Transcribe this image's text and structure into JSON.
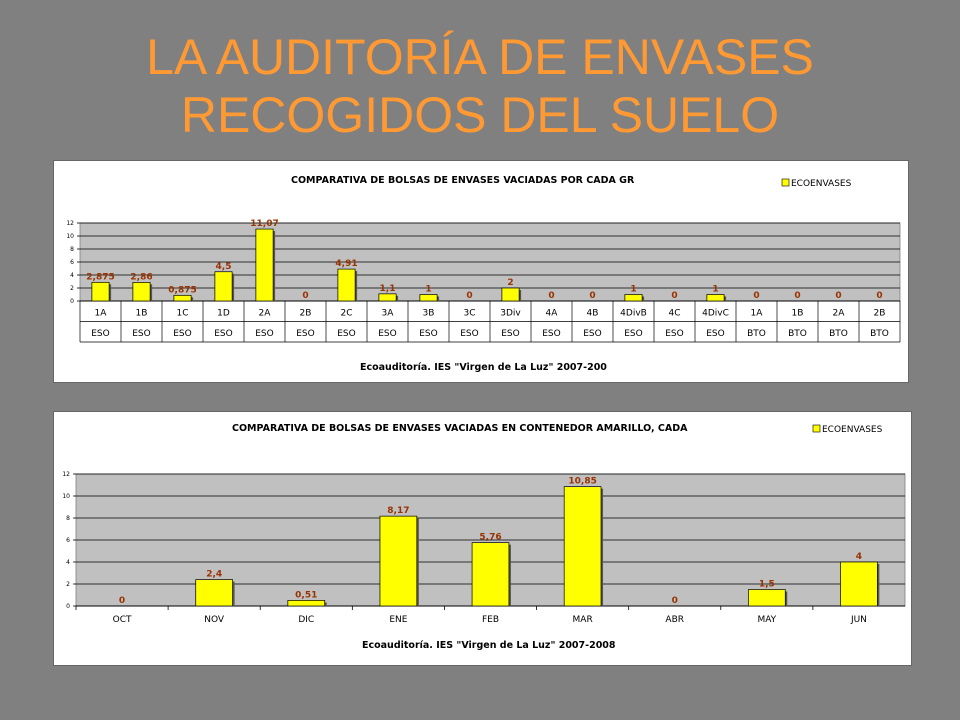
{
  "slide": {
    "title_line1": "LA AUDITORÍA DE ENVASES",
    "title_line2": "RECOGIDOS DEL SUELO"
  },
  "colors": {
    "title": "#FF9933",
    "bar": "#FFFF00",
    "bar_border": "#000000",
    "plot_bg": "#C0C0C0",
    "data_label": "#993300"
  },
  "chart_data": [
    {
      "type": "bar",
      "title": "COMPARATIVA DE BOLSAS DE ENVASES VACIADAS POR CADA GR",
      "xlabel": "Ecoauditoría. IES \"Virgen de La Luz\" 2007-200",
      "legend": {
        "label": "ECOENVASES",
        "position": "top-right"
      },
      "ylim": [
        0,
        12
      ],
      "yticks": [
        0,
        2,
        4,
        6,
        8,
        10,
        12
      ],
      "grid": true,
      "categories": [
        [
          "1A",
          "ESO"
        ],
        [
          "1B",
          "ESO"
        ],
        [
          "1C",
          "ESO"
        ],
        [
          "1D",
          "ESO"
        ],
        [
          "2A",
          "ESO"
        ],
        [
          "2B",
          "ESO"
        ],
        [
          "2C",
          "ESO"
        ],
        [
          "3A",
          "ESO"
        ],
        [
          "3B",
          "ESO"
        ],
        [
          "3C",
          "ESO"
        ],
        [
          "3Div",
          "ESO"
        ],
        [
          "4A",
          "ESO"
        ],
        [
          "4B",
          "ESO"
        ],
        [
          "4DivB",
          "ESO"
        ],
        [
          "4C",
          "ESO"
        ],
        [
          "4DivC",
          "ESO"
        ],
        [
          "1A",
          "BTO"
        ],
        [
          "1B",
          "BTO"
        ],
        [
          "2A",
          "BTO"
        ],
        [
          "2B",
          "BTO"
        ]
      ],
      "values": [
        2.875,
        2.86,
        0.875,
        4.5,
        11.07,
        0,
        4.91,
        1.1,
        1,
        0,
        2,
        0,
        0,
        1,
        0,
        1,
        0,
        0,
        0,
        0
      ],
      "labels": [
        "2,875",
        "2,86",
        "0,875",
        "4,5",
        "11,07",
        "0",
        "4,91",
        "1,1",
        "1",
        "0",
        "2",
        "0",
        "0",
        "1",
        "0",
        "1",
        "0",
        "0",
        "0",
        "0"
      ]
    },
    {
      "type": "bar",
      "title": "COMPARATIVA DE BOLSAS DE ENVASES VACIADAS EN CONTENEDOR AMARILLO, CADA",
      "xlabel": "Ecoauditoría. IES \"Virgen de La Luz\" 2007-2008",
      "legend": {
        "label": "ECOENVASES",
        "position": "top-right"
      },
      "ylim": [
        0,
        12
      ],
      "yticks": [
        0,
        2,
        4,
        6,
        8,
        10,
        12
      ],
      "grid": true,
      "categories": [
        "OCT",
        "NOV",
        "DIC",
        "ENE",
        "FEB",
        "MAR",
        "ABR",
        "MAY",
        "JUN"
      ],
      "values": [
        0,
        2.4,
        0.51,
        8.17,
        5.76,
        10.85,
        0,
        1.5,
        4
      ],
      "labels": [
        "0",
        "2,4",
        "0,51",
        "8,17",
        "5,76",
        "10,85",
        "0",
        "1,5",
        "4"
      ]
    }
  ]
}
